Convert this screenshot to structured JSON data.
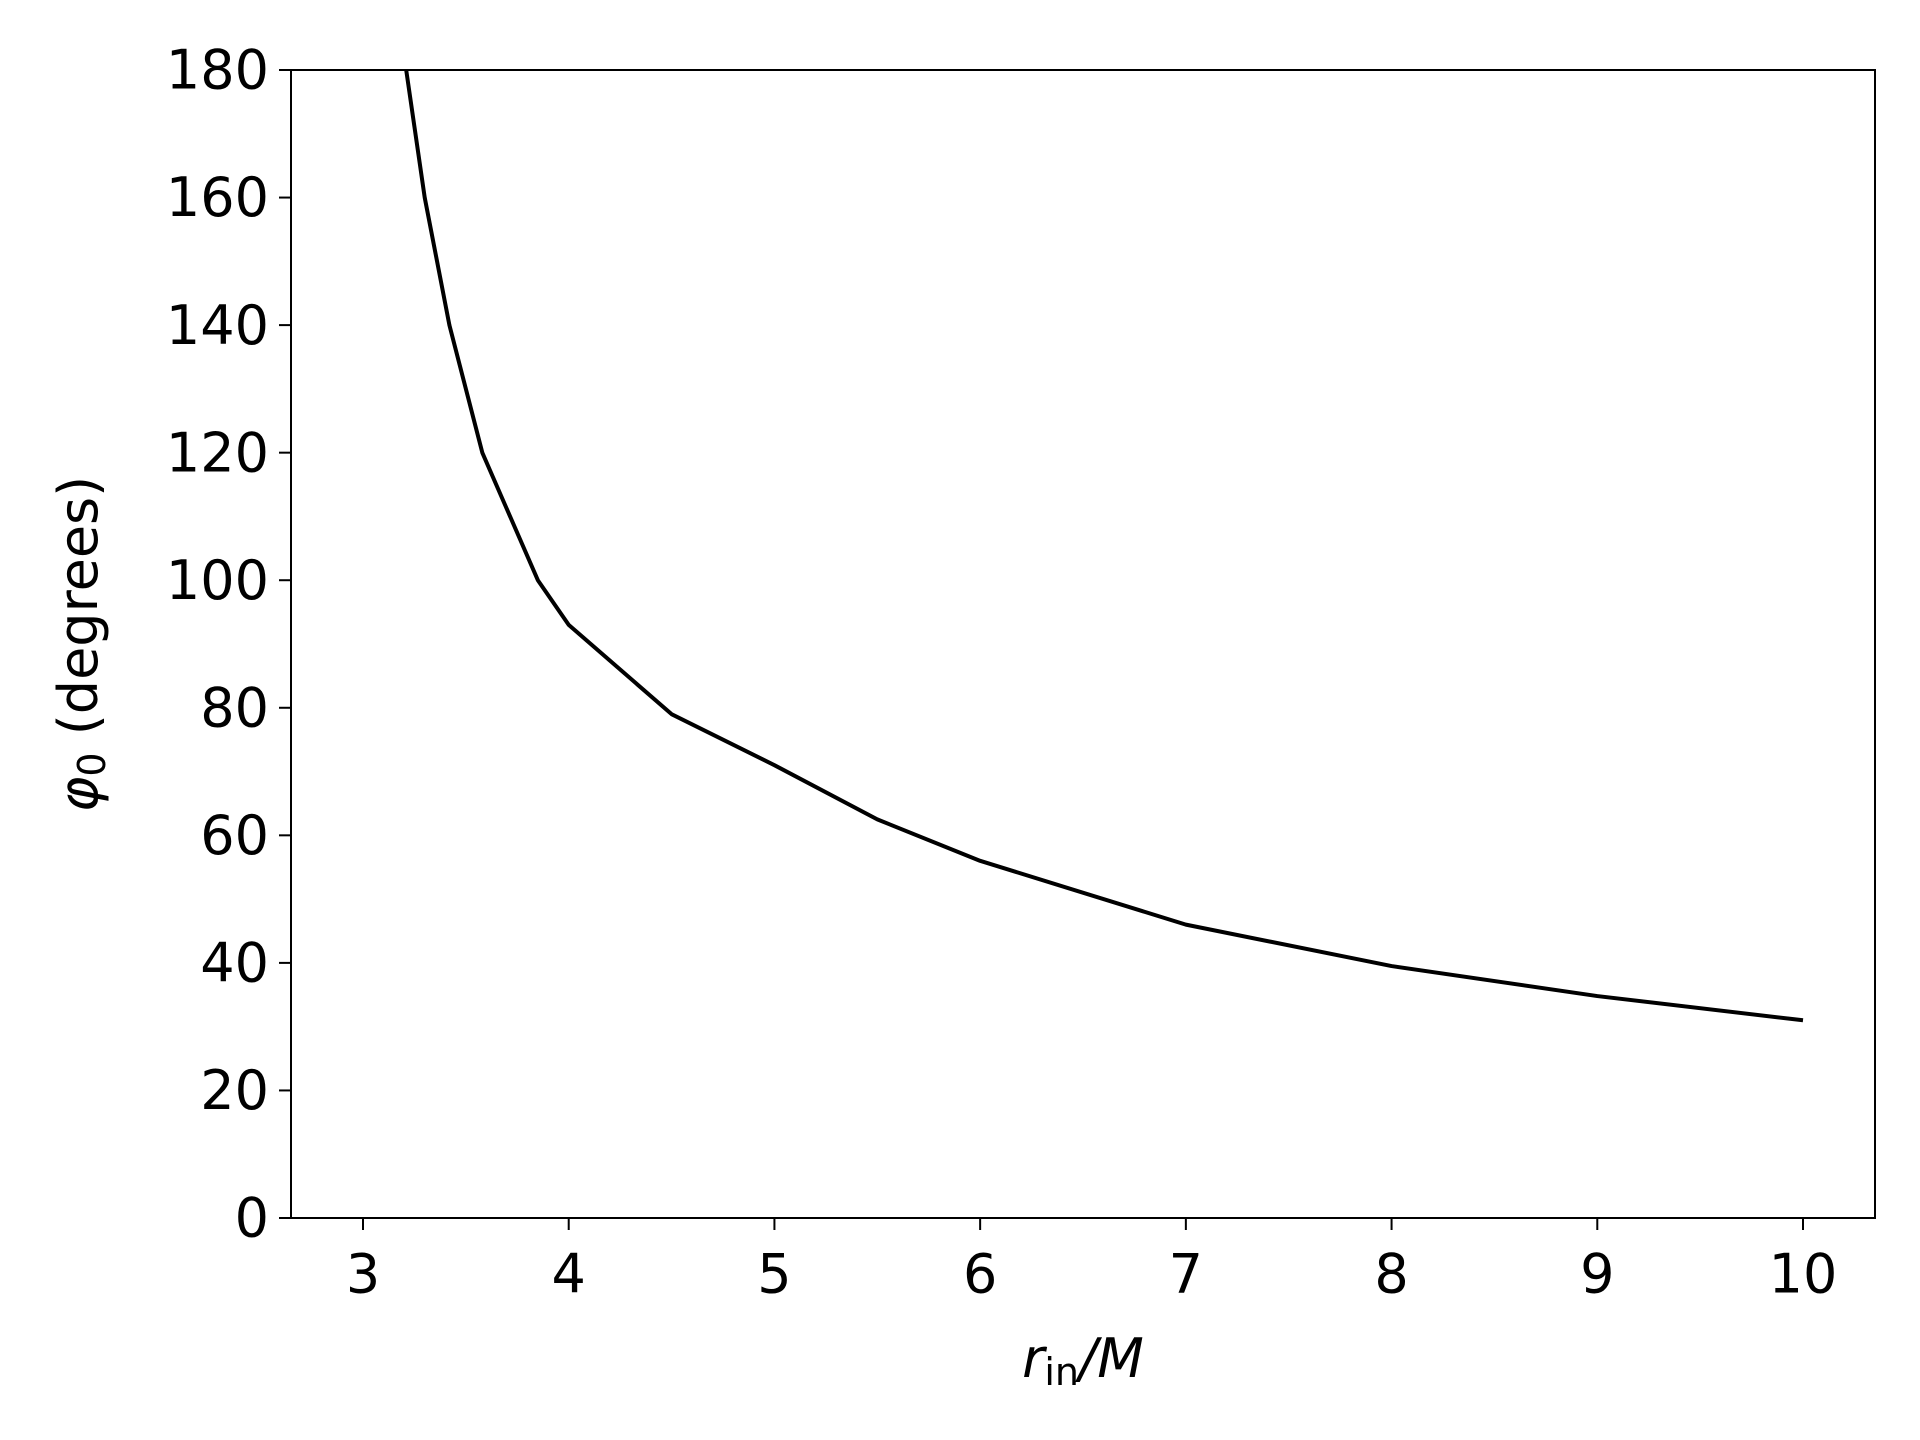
{
  "chart_data": {
    "type": "line",
    "xlabel": [
      "r",
      "in",
      "/M"
    ],
    "ylabel": [
      "φ",
      "0",
      " (degrees)"
    ],
    "x": [
      3.21,
      3.3,
      3.42,
      3.58,
      3.85,
      4,
      4.5,
      5,
      5.5,
      6,
      7,
      8,
      9,
      10
    ],
    "values": [
      180,
      160,
      140,
      120,
      100,
      93,
      79,
      71,
      62.5,
      56,
      46,
      39.5,
      34.8,
      31
    ],
    "color": "#000000",
    "xlim": [
      2.65,
      10.35
    ],
    "xticks": [
      3,
      4,
      5,
      6,
      7,
      8,
      9,
      10
    ],
    "ylim": [
      0,
      180
    ],
    "yticks": [
      0,
      20,
      40,
      60,
      80,
      100,
      120,
      140,
      160,
      180
    ],
    "grid": false
  }
}
